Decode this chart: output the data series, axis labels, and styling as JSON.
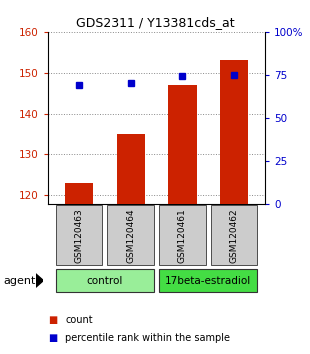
{
  "title": "GDS2311 / Y13381cds_at",
  "samples": [
    "GSM120463",
    "GSM120464",
    "GSM120461",
    "GSM120462"
  ],
  "counts": [
    123,
    135,
    147,
    153
  ],
  "percentile_ranks": [
    69,
    70,
    74,
    75
  ],
  "ylim_left": [
    118,
    160
  ],
  "ylim_right": [
    0,
    100
  ],
  "yticks_left": [
    120,
    130,
    140,
    150,
    160
  ],
  "yticks_right": [
    0,
    25,
    50,
    75,
    100
  ],
  "yticklabels_right": [
    "0",
    "25",
    "50",
    "75",
    "100%"
  ],
  "bar_color": "#cc2200",
  "dot_color": "#0000cc",
  "groups": [
    {
      "label": "control",
      "samples": [
        0,
        1
      ],
      "color": "#99ee99"
    },
    {
      "label": "17beta-estradiol",
      "samples": [
        2,
        3
      ],
      "color": "#44dd44"
    }
  ],
  "agent_label": "agent",
  "legend_count_label": "count",
  "legend_percentile_label": "percentile rank within the sample",
  "grid_color": "#888888",
  "tick_label_color_left": "#cc2200",
  "tick_label_color_right": "#0000cc",
  "bar_width": 0.55,
  "plot_bg_color": "#ffffff",
  "sample_box_color": "#cccccc",
  "x_positions": [
    0,
    1,
    2,
    3
  ]
}
